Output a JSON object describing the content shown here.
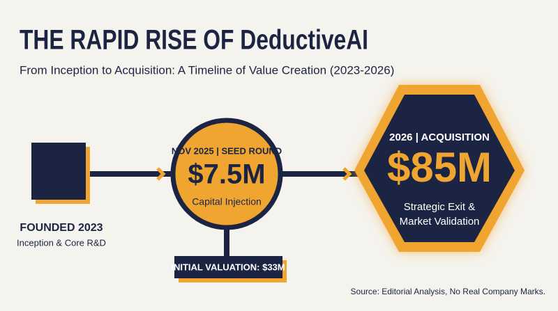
{
  "header": {
    "title": "THE RAPID RISE OF DeductiveAI",
    "subtitle": "From Inception to Acquisition: A Timeline of Value Creation (2023-2026)"
  },
  "nodes": [
    {
      "label": "FOUNDED 2023",
      "caption": "Inception & Core R&D"
    },
    {
      "label": "NOV 2025 | SEED ROUND",
      "amount": "$7.5M",
      "caption": "Capital Injection",
      "note": "INITIAL VALUATION: $33M"
    },
    {
      "label": "2026 | ACQUISITION",
      "amount": "$85M",
      "caption_lines": [
        "Strategic Exit &",
        "Market Validation"
      ]
    }
  ],
  "footer": {
    "source": "Source: Editorial Analysis, No Real Company Marks."
  }
}
